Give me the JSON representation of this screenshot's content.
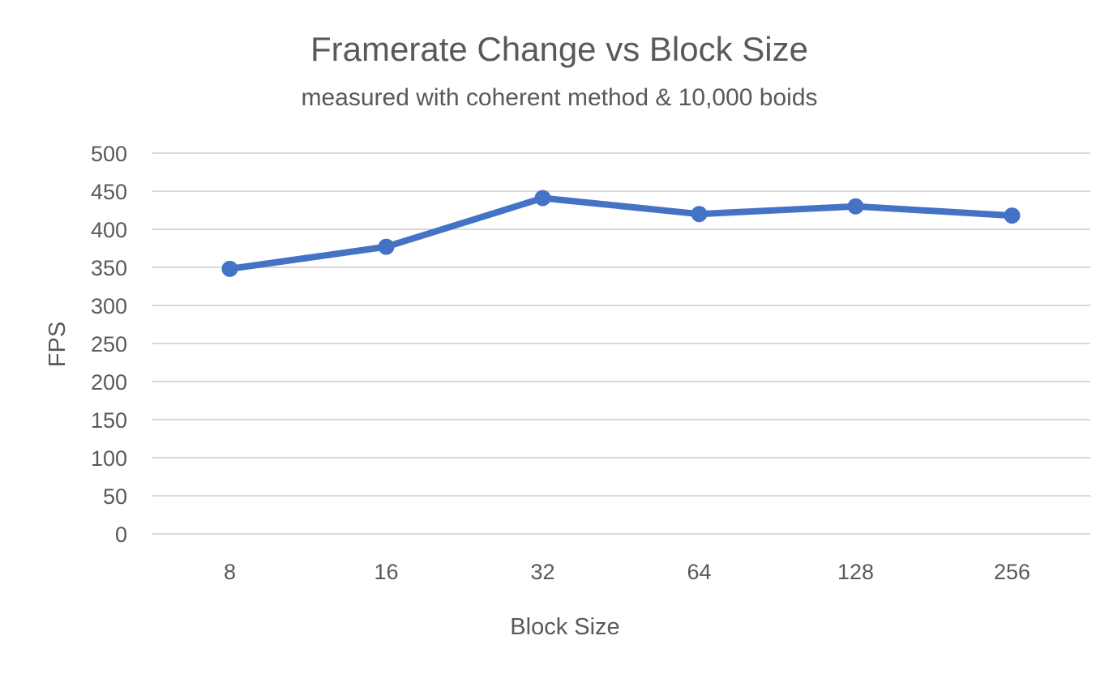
{
  "chart_data": {
    "type": "line",
    "title": "Framerate Change vs Block Size",
    "subtitle": "measured with coherent method & 10,000 boids",
    "xlabel": "Block Size",
    "ylabel": "FPS",
    "categories": [
      "8",
      "16",
      "32",
      "64",
      "128",
      "256"
    ],
    "series": [
      {
        "values": [
          348,
          377,
          441,
          420,
          430,
          418
        ]
      }
    ],
    "ylim": [
      0,
      500
    ],
    "yticks": [
      "0",
      "50",
      "100",
      "150",
      "200",
      "250",
      "300",
      "350",
      "400",
      "450",
      "500"
    ],
    "grid": "horizontal",
    "colors": {
      "series": "#4472c4",
      "grid": "#d9d9d9",
      "text": "#595959"
    }
  }
}
